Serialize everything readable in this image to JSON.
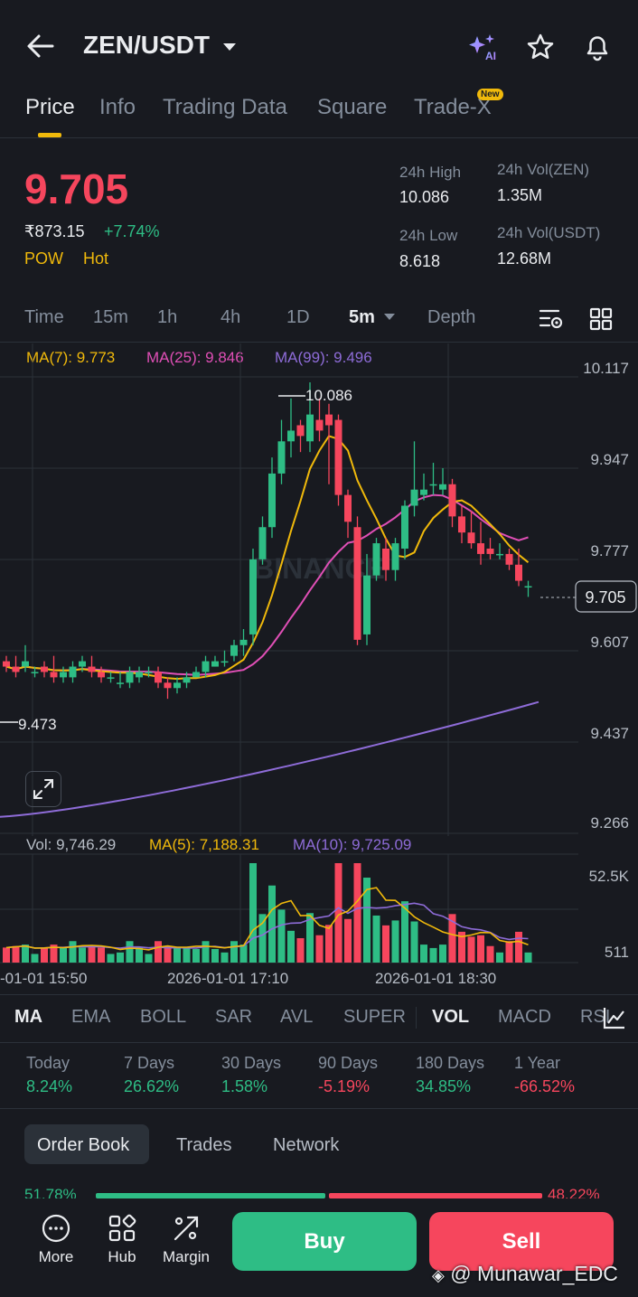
{
  "header": {
    "pair": "ZEN/USDT",
    "ai_badge": "AI"
  },
  "tabs": [
    {
      "label": "Price",
      "active": true
    },
    {
      "label": "Info"
    },
    {
      "label": "Trading Data"
    },
    {
      "label": "Square"
    },
    {
      "label": "Trade-X",
      "badge": "New"
    }
  ],
  "ticker": {
    "last_price": "9.705",
    "fiat_price": "₹873.15",
    "change": "+7.74%",
    "tag1": "POW",
    "tag2": "Hot",
    "stats": {
      "high_label": "24h High",
      "high": "10.086",
      "low_label": "24h Low",
      "low": "8.618",
      "vol_base_label": "24h Vol(ZEN)",
      "vol_base": "1.35M",
      "vol_quote_label": "24h Vol(USDT)",
      "vol_quote": "12.68M"
    }
  },
  "intervals": {
    "items": [
      "Time",
      "15m",
      "1h",
      "4h",
      "1D",
      "5m",
      "Depth"
    ],
    "selected": "5m"
  },
  "ma_legend": {
    "ma7": "MA(7): 9.773",
    "ma25": "MA(25): 9.846",
    "ma99": "MA(99): 9.496"
  },
  "price_axis": [
    "10.117",
    "9.947",
    "9.777",
    "9.607",
    "9.437",
    "9.266"
  ],
  "current_price_tag": "9.705",
  "high_marker": "10.086",
  "low_marker": "9.473",
  "watermark": "BINANCE",
  "vol_legend": {
    "vol": "Vol: 9,746.29",
    "ma5": "MA(5): 7,188.31",
    "ma10": "MA(10): 9,725.09"
  },
  "vol_axis": [
    "52.5K",
    "511"
  ],
  "time_axis": [
    "-01-01 15:50",
    "2026-01-01 17:10",
    "2026-01-01 18:30"
  ],
  "indicators": {
    "items": [
      "MA",
      "EMA",
      "BOLL",
      "SAR",
      "AVL",
      "SUPER",
      "VOL",
      "MACD",
      "RSI"
    ],
    "active": [
      "MA",
      "VOL"
    ]
  },
  "performance": [
    {
      "label": "Today",
      "value": "8.24%",
      "color": "#2ebd85"
    },
    {
      "label": "7 Days",
      "value": "26.62%",
      "color": "#2ebd85"
    },
    {
      "label": "30 Days",
      "value": "1.58%",
      "color": "#2ebd85"
    },
    {
      "label": "90 Days",
      "value": "-5.19%",
      "color": "#f6465d"
    },
    {
      "label": "180 Days",
      "value": "34.85%",
      "color": "#2ebd85"
    },
    {
      "label": "1 Year",
      "value": "-66.52%",
      "color": "#f6465d"
    }
  ],
  "book_tabs": [
    "Order Book",
    "Trades",
    "Network"
  ],
  "book_ratio": {
    "buy": "51.78%",
    "sell": "48.22%"
  },
  "bottom_nav": {
    "more": "More",
    "hub": "Hub",
    "margin": "Margin",
    "buy": "Buy",
    "sell": "Sell"
  },
  "watermark_user": "@ Munawar_EDC",
  "colors": {
    "up": "#2ebd85",
    "down": "#f6465d",
    "accent": "#f0b90b",
    "ma7": "#f0b90b",
    "ma25": "#e04fb6",
    "ma99": "#8e6cd8",
    "background": "#181a20"
  },
  "chart_data": {
    "type": "candlestick",
    "price_axis_range": [
      9.266,
      10.117
    ],
    "candles": [
      [
        9.57,
        9.56,
        9.58,
        9.55
      ],
      [
        9.56,
        9.55,
        9.58,
        9.54
      ],
      [
        9.56,
        9.57,
        9.6,
        9.55
      ],
      [
        9.55,
        9.55,
        9.56,
        9.54
      ],
      [
        9.56,
        9.55,
        9.57,
        9.54
      ],
      [
        9.55,
        9.54,
        9.58,
        9.53
      ],
      [
        9.54,
        9.55,
        9.56,
        9.53
      ],
      [
        9.54,
        9.56,
        9.57,
        9.53
      ],
      [
        9.56,
        9.57,
        9.58,
        9.55
      ],
      [
        9.56,
        9.55,
        9.58,
        9.54
      ],
      [
        9.55,
        9.54,
        9.56,
        9.53
      ],
      [
        9.54,
        9.54,
        9.55,
        9.53
      ],
      [
        9.53,
        9.53,
        9.55,
        9.52
      ],
      [
        9.53,
        9.55,
        9.56,
        9.52
      ],
      [
        9.54,
        9.55,
        9.56,
        9.53
      ],
      [
        9.55,
        9.55,
        9.56,
        9.54
      ],
      [
        9.55,
        9.53,
        9.56,
        9.52
      ],
      [
        9.53,
        9.52,
        9.54,
        9.5
      ],
      [
        9.52,
        9.53,
        9.54,
        9.51
      ],
      [
        9.53,
        9.54,
        9.55,
        9.52
      ],
      [
        9.54,
        9.55,
        9.56,
        9.54
      ],
      [
        9.55,
        9.57,
        9.58,
        9.54
      ],
      [
        9.56,
        9.57,
        9.58,
        9.56
      ],
      [
        9.57,
        9.57,
        9.59,
        9.56
      ],
      [
        9.58,
        9.6,
        9.61,
        9.57
      ],
      [
        9.6,
        9.61,
        9.63,
        9.58
      ],
      [
        9.62,
        9.76,
        9.78,
        9.6
      ],
      [
        9.76,
        9.82,
        9.84,
        9.75
      ],
      [
        9.82,
        9.92,
        9.95,
        9.8
      ],
      [
        9.92,
        9.98,
        10.02,
        9.9
      ],
      [
        9.98,
        10.0,
        10.06,
        9.95
      ],
      [
        10.01,
        9.99,
        10.02,
        9.96
      ],
      [
        9.98,
        10.03,
        10.09,
        9.96
      ],
      [
        10.02,
        10.0,
        10.06,
        9.98
      ],
      [
        10.03,
        10.01,
        10.05,
        9.9
      ],
      [
        10.02,
        9.88,
        10.03,
        9.86
      ],
      [
        9.88,
        9.83,
        9.89,
        9.8
      ],
      [
        9.82,
        9.61,
        9.84,
        9.6
      ],
      [
        9.62,
        9.73,
        9.77,
        9.6
      ],
      [
        9.73,
        9.79,
        9.8,
        9.72
      ],
      [
        9.78,
        9.74,
        9.8,
        9.72
      ],
      [
        9.74,
        9.79,
        9.8,
        9.72
      ],
      [
        9.78,
        9.86,
        9.87,
        9.76
      ],
      [
        9.86,
        9.89,
        9.98,
        9.84
      ],
      [
        9.88,
        9.89,
        9.92,
        9.87
      ],
      [
        9.9,
        9.9,
        9.94,
        9.88
      ],
      [
        9.89,
        9.9,
        9.93,
        9.88
      ],
      [
        9.9,
        9.84,
        9.91,
        9.82
      ],
      [
        9.84,
        9.81,
        9.86,
        9.79
      ],
      [
        9.81,
        9.79,
        9.85,
        9.78
      ],
      [
        9.79,
        9.77,
        9.83,
        9.75
      ],
      [
        9.78,
        9.77,
        9.8,
        9.76
      ],
      [
        9.77,
        9.77,
        9.79,
        9.76
      ],
      [
        9.77,
        9.75,
        9.78,
        9.74
      ],
      [
        9.75,
        9.72,
        9.78,
        9.71
      ],
      [
        9.71,
        9.71,
        9.72,
        9.69
      ]
    ]
  }
}
